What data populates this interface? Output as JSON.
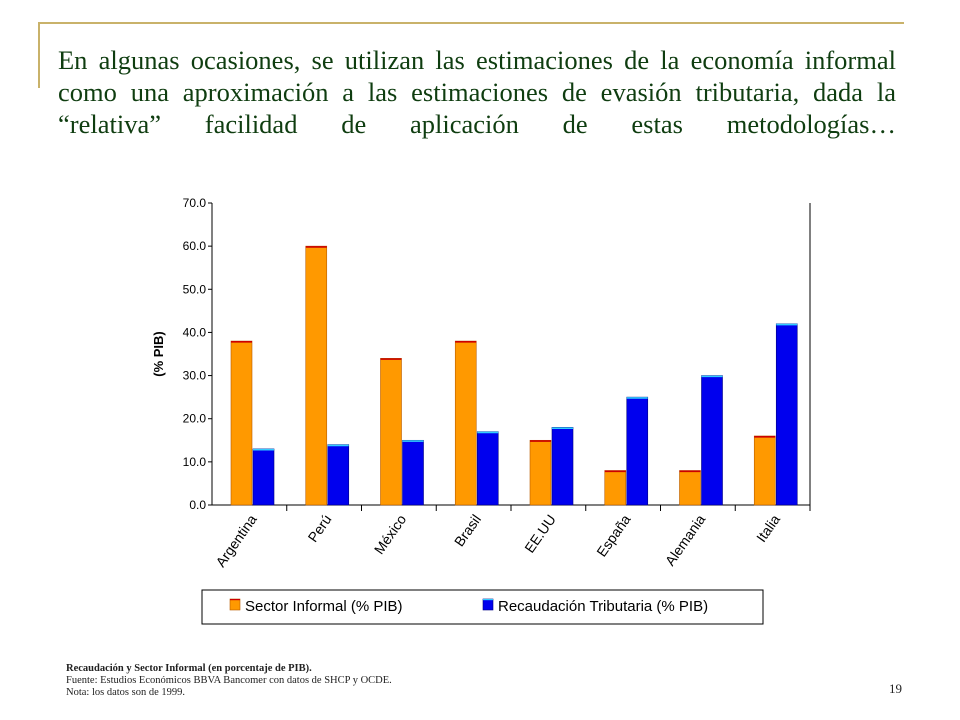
{
  "slide": {
    "title": "En algunas ocasiones, se utilizan las estimaciones de la economía informal como una aproximación a las estimaciones de evasión tributaria, dada la “relativa” facilidad de aplicación de estas metodologías…",
    "page_number": "19"
  },
  "caption": {
    "title": "Recaudación y Sector Informal (en porcentaje de PIB).",
    "source": "Fuente: Estudios Económicos BBVA Bancomer con datos de SHCP y OCDE.",
    "note": "Nota: los datos son de 1999."
  },
  "colors": {
    "title": "#0f3d10",
    "frame": "#c9b26a",
    "sector_informal": "#ff9900",
    "recaudacion": "#0000ee",
    "recaudacion_highlight": "#33ccff"
  },
  "chart_data": {
    "type": "bar",
    "ylabel": "(% PIB)",
    "ylim": [
      0,
      70
    ],
    "yticks": [
      "0.0",
      "10.0",
      "20.0",
      "30.0",
      "40.0",
      "50.0",
      "60.0",
      "70.0"
    ],
    "grid": false,
    "legend_position": "bottom",
    "categories": [
      "Argentina",
      "Perú",
      "México",
      "Brasil",
      "EE.UU",
      "España",
      "Alemania",
      "Italia"
    ],
    "series": [
      {
        "name": "Sector Informal (% PIB)",
        "values": [
          38,
          60,
          34,
          38,
          15,
          8,
          8,
          16
        ]
      },
      {
        "name": "Recaudación Tributaria (% PIB)",
        "values": [
          13,
          14,
          15,
          17,
          18,
          25,
          30,
          42
        ]
      }
    ]
  }
}
